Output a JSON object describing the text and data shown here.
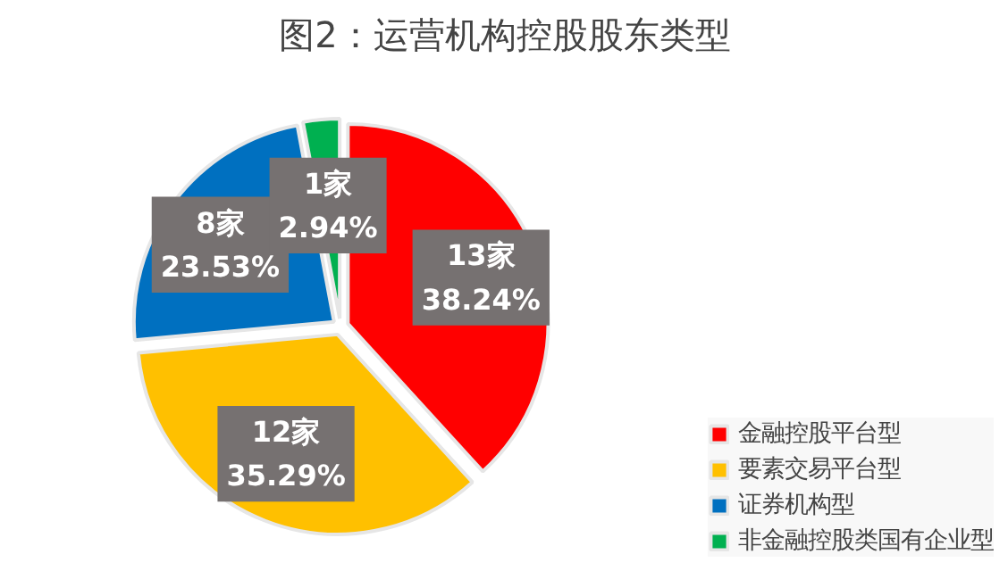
{
  "chart_data": {
    "type": "pie",
    "title": "图2：运营机构控股股东类型",
    "categories": [
      "金融控股平台型",
      "要素交易平台型",
      "证券机构型",
      "非金融控股类国有企业型"
    ],
    "values": [
      13,
      12,
      8,
      1
    ],
    "colors": [
      "#ff0000",
      "#ffc000",
      "#0070c0",
      "#00b050"
    ],
    "value_labels": [
      "13家\n38.24%",
      "12家\n35.29%",
      "8家\n23.53%",
      "1家\n2.94%"
    ],
    "legend": "bottom right"
  }
}
